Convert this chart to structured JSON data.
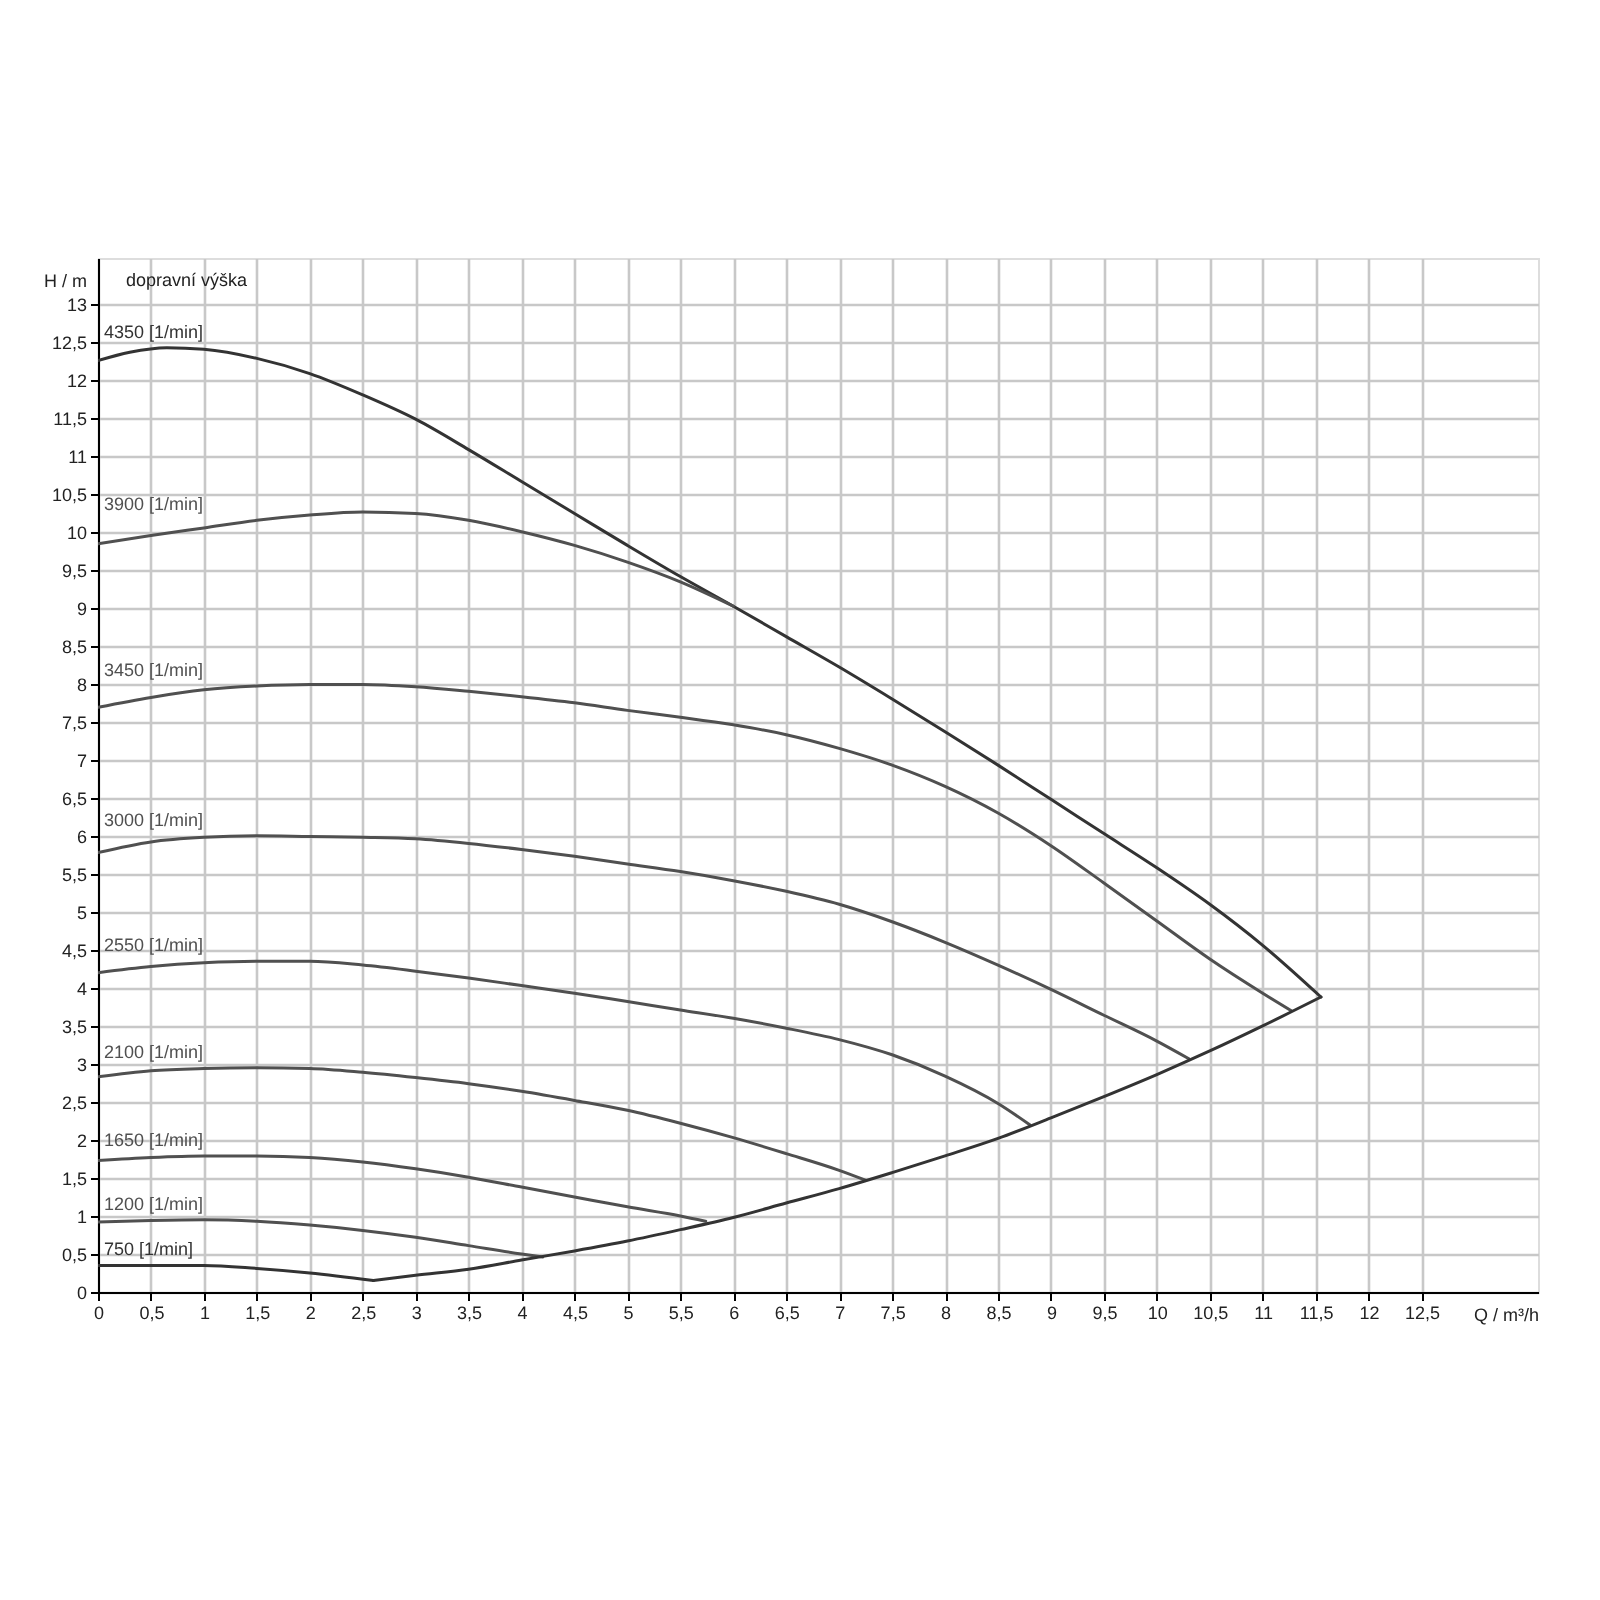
{
  "chart_data": {
    "type": "line",
    "xlabel": "Q / m³/h",
    "ylabel": "H / m",
    "annotations": [
      "dopravní výška"
    ],
    "xlim": [
      0,
      13.6
    ],
    "ylim": [
      0,
      13.6
    ],
    "xticks": [
      0,
      {
        "value": 0.5,
        "label": "0,5"
      },
      1,
      {
        "value": 1.5,
        "label": "1,5"
      },
      2,
      {
        "value": 2.5,
        "label": "2,5"
      },
      3,
      {
        "value": 3.5,
        "label": "3,5"
      },
      4,
      {
        "value": 4.5,
        "label": "4,5"
      },
      5,
      {
        "value": 5.5,
        "label": "5,5"
      },
      6,
      {
        "value": 6.5,
        "label": "6,5"
      },
      7,
      {
        "value": 7.5,
        "label": "7,5"
      },
      8,
      {
        "value": 8.5,
        "label": "8,5"
      },
      9,
      {
        "value": 9.5,
        "label": "9,5"
      },
      10,
      {
        "value": 10.5,
        "label": "10,5"
      },
      11,
      {
        "value": 11.5,
        "label": "11,5"
      },
      12,
      {
        "value": 12.5,
        "label": "12,5"
      }
    ],
    "yticks": [
      0,
      {
        "value": 0.5,
        "label": "0,5"
      },
      1,
      {
        "value": 1.5,
        "label": "1,5"
      },
      2,
      {
        "value": 2.5,
        "label": "2,5"
      },
      3,
      {
        "value": 3.5,
        "label": "3,5"
      },
      4,
      {
        "value": 4.5,
        "label": "4,5"
      },
      5,
      {
        "value": 5.5,
        "label": "5,5"
      },
      6,
      {
        "value": 6.5,
        "label": "6,5"
      },
      7,
      {
        "value": 7.5,
        "label": "7,5"
      },
      8,
      {
        "value": 8.5,
        "label": "8,5"
      },
      9,
      {
        "value": 9.5,
        "label": "9,5"
      },
      10,
      {
        "value": 10.5,
        "label": "10,5"
      },
      11,
      {
        "value": 11.5,
        "label": "11,5"
      },
      12,
      {
        "value": 12.5,
        "label": "12,5"
      },
      13
    ],
    "grid": true,
    "series": [
      {
        "name": "4350 [1/min]",
        "color": "#333333",
        "x": [
          0,
          0.3,
          0.65,
          1,
          1.5,
          2,
          2.5,
          3,
          3.5,
          4,
          4.5,
          5,
          5.5,
          6,
          6.5,
          7,
          7.5,
          8,
          8.5,
          9,
          9.5,
          10,
          10.5,
          11,
          11.55
        ],
        "values": [
          12.25,
          12.36,
          12.42,
          12.4,
          12.28,
          12.08,
          11.8,
          11.48,
          11.08,
          10.66,
          10.24,
          9.82,
          9.41,
          9.02,
          8.62,
          8.22,
          7.8,
          7.37,
          6.93,
          6.48,
          6.03,
          5.58,
          5.1,
          4.56,
          3.88
        ]
      },
      {
        "name": "3900 [1/min]",
        "color": "#505050",
        "x": [
          0,
          0.5,
          1,
          1.5,
          2,
          2.5,
          3,
          3.5,
          4,
          4.5,
          5,
          5.5,
          6
        ],
        "values": [
          9.84,
          9.95,
          10.05,
          10.15,
          10.22,
          10.26,
          10.24,
          10.15,
          10.0,
          9.82,
          9.6,
          9.34,
          9.02
        ]
      },
      {
        "name": "3450 [1/min]",
        "color": "#505050",
        "x": [
          0,
          0.5,
          1,
          1.5,
          2,
          2.5,
          3,
          3.5,
          4,
          4.5,
          5,
          5.5,
          6,
          6.5,
          7,
          7.5,
          8,
          8.5,
          9,
          9.5,
          10,
          10.5,
          11,
          11.27
        ],
        "values": [
          7.69,
          7.82,
          7.92,
          7.97,
          7.99,
          7.99,
          7.96,
          7.9,
          7.83,
          7.75,
          7.65,
          7.56,
          7.46,
          7.33,
          7.15,
          6.93,
          6.65,
          6.3,
          5.87,
          5.38,
          4.88,
          4.38,
          3.93,
          3.7
        ]
      },
      {
        "name": "3000 [1/min]",
        "color": "#505050",
        "x": [
          0,
          0.5,
          1,
          1.5,
          2,
          2.5,
          3,
          3.5,
          4,
          4.5,
          5,
          5.5,
          6,
          6.5,
          7,
          7.5,
          8,
          8.5,
          9,
          9.5,
          10,
          10.3
        ],
        "values": [
          5.78,
          5.92,
          5.98,
          6.0,
          5.99,
          5.98,
          5.96,
          5.9,
          5.82,
          5.73,
          5.63,
          5.53,
          5.41,
          5.27,
          5.1,
          4.87,
          4.6,
          4.3,
          3.98,
          3.64,
          3.3,
          3.07
        ]
      },
      {
        "name": "2550 [1/min]",
        "color": "#505050",
        "x": [
          0,
          0.5,
          1,
          1.5,
          2,
          2.5,
          3,
          3.5,
          4,
          4.5,
          5,
          5.5,
          6,
          6.5,
          7,
          7.5,
          8,
          8.5,
          8.8
        ],
        "values": [
          4.2,
          4.28,
          4.33,
          4.35,
          4.35,
          4.3,
          4.22,
          4.13,
          4.03,
          3.93,
          3.82,
          3.71,
          3.6,
          3.47,
          3.32,
          3.12,
          2.84,
          2.48,
          2.2
        ]
      },
      {
        "name": "2100 [1/min]",
        "color": "#505050",
        "x": [
          0,
          0.5,
          1,
          1.5,
          2,
          2.5,
          3,
          3.5,
          4,
          4.5,
          5,
          5.5,
          6,
          6.5,
          7,
          7.25
        ],
        "values": [
          2.83,
          2.91,
          2.94,
          2.95,
          2.94,
          2.89,
          2.82,
          2.74,
          2.64,
          2.52,
          2.39,
          2.22,
          2.03,
          1.82,
          1.6,
          1.47
        ]
      },
      {
        "name": "1650 [1/min]",
        "color": "#505050",
        "x": [
          0,
          0.5,
          1,
          1.5,
          2,
          2.5,
          3,
          3.5,
          4,
          4.5,
          5,
          5.5,
          5.74
        ],
        "values": [
          1.73,
          1.77,
          1.79,
          1.79,
          1.77,
          1.71,
          1.62,
          1.51,
          1.38,
          1.25,
          1.12,
          1.0,
          0.93
        ]
      },
      {
        "name": "1200 [1/min]",
        "color": "#505050",
        "x": [
          0,
          0.5,
          1,
          1.5,
          2,
          2.5,
          3,
          3.5,
          4,
          4.2
        ],
        "values": [
          0.92,
          0.94,
          0.95,
          0.93,
          0.88,
          0.81,
          0.72,
          0.61,
          0.5,
          0.46
        ]
      },
      {
        "name": "750 [1/min]",
        "color": "#333333",
        "x": [
          0,
          0.5,
          1,
          1.5,
          2,
          2.6
        ],
        "values": [
          0.35,
          0.35,
          0.35,
          0.31,
          0.25,
          0.15
        ]
      },
      {
        "color": "#333333",
        "x": [
          2.6,
          3,
          3.5,
          4,
          4.5,
          5,
          5.5,
          6,
          6.5,
          7,
          7.5,
          8,
          8.5,
          9,
          9.5,
          10,
          10.5,
          11,
          11.55
        ],
        "values": [
          0.15,
          0.22,
          0.3,
          0.42,
          0.54,
          0.67,
          0.82,
          0.98,
          1.17,
          1.36,
          1.57,
          1.79,
          2.02,
          2.29,
          2.57,
          2.86,
          3.17,
          3.5,
          3.88
        ]
      }
    ]
  }
}
